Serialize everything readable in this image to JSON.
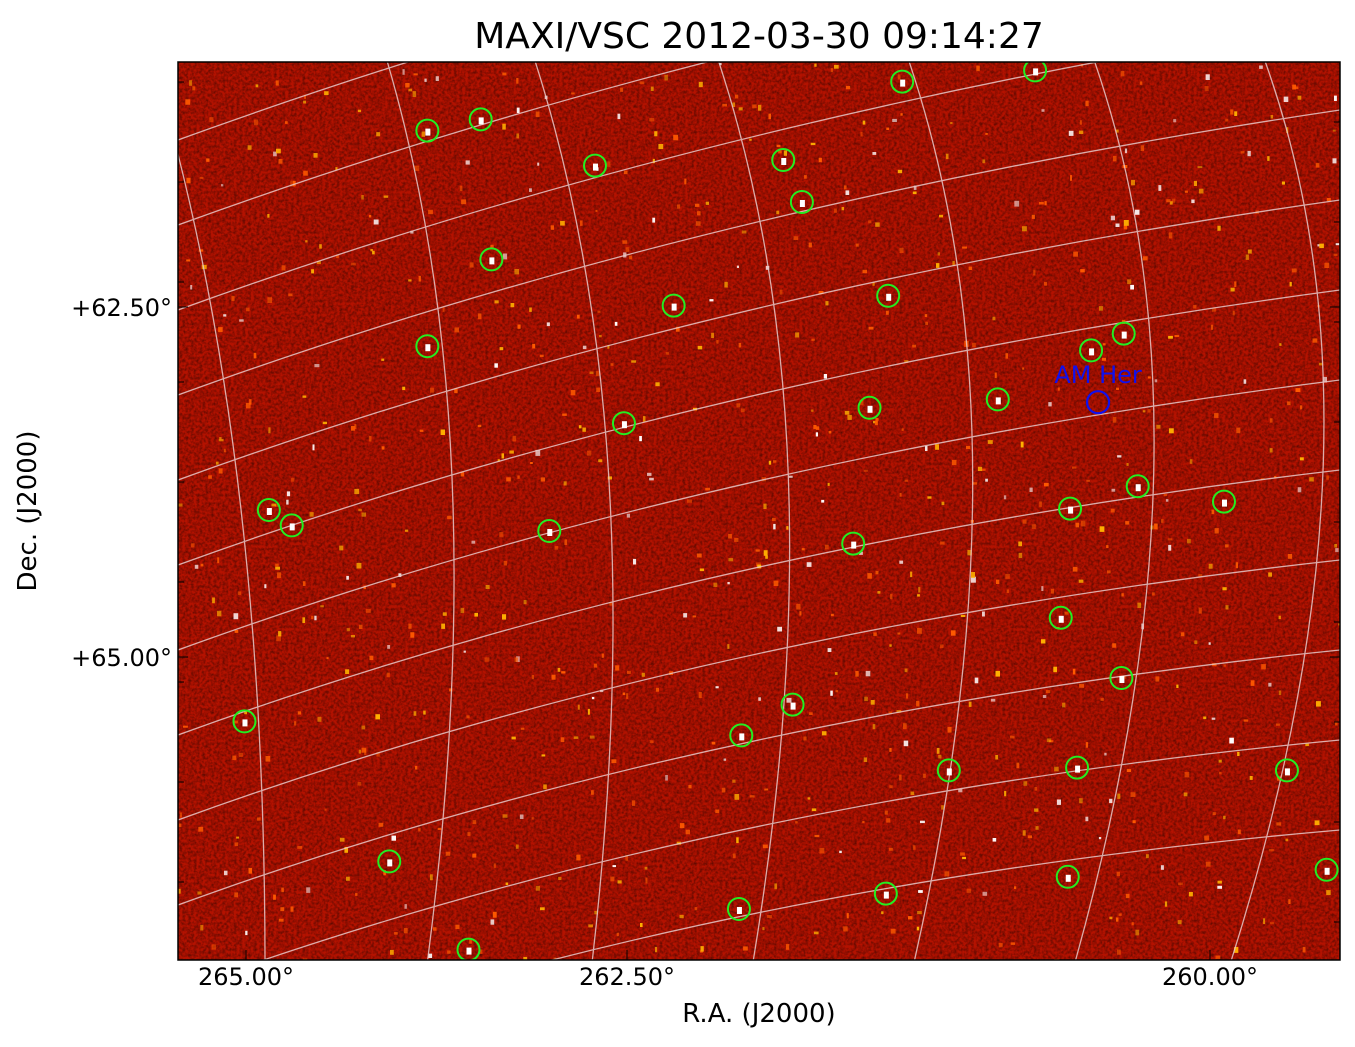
{
  "chart_data": {
    "type": "scatter",
    "title": "MAXI/VSC 2012-03-30 09:14:27",
    "xlabel": "R.A. (J2000)",
    "ylabel": "Dec. (J2000)",
    "xlim": [
      265.45,
      259.44
    ],
    "ylim": [
      60.75,
      67.16
    ],
    "x_ticks": [
      {
        "value": 265.0,
        "label": "265.00°"
      },
      {
        "value": 262.5,
        "label": "262.50°"
      },
      {
        "value": 260.0,
        "label": "260.00°"
      }
    ],
    "y_ticks": [
      {
        "value": 62.5,
        "label": "+62.50°"
      },
      {
        "value": 65.0,
        "label": "+65.00°"
      }
    ],
    "grid": true,
    "background": "X-ray sky image, red colormap",
    "colors": {
      "sources": "#22ee22",
      "target": "#1010ee",
      "grid": "#e8c8c8",
      "image": "#b01000"
    },
    "sources": [
      {
        "ra": 263.81,
        "dec": 61.24
      },
      {
        "ra": 263.46,
        "dec": 61.16
      },
      {
        "ra": 262.71,
        "dec": 61.49
      },
      {
        "ra": 261.32,
        "dec": 60.89
      },
      {
        "ra": 260.75,
        "dec": 60.81
      },
      {
        "ra": 261.83,
        "dec": 61.45
      },
      {
        "ra": 261.75,
        "dec": 61.75
      },
      {
        "ra": 263.39,
        "dec": 62.16
      },
      {
        "ra": 262.3,
        "dec": 62.49
      },
      {
        "ra": 261.38,
        "dec": 62.42
      },
      {
        "ra": 263.81,
        "dec": 62.78
      },
      {
        "ra": 260.37,
        "dec": 62.69
      },
      {
        "ra": 260.51,
        "dec": 62.81
      },
      {
        "ra": 260.91,
        "dec": 63.16
      },
      {
        "ra": 261.46,
        "dec": 63.22
      },
      {
        "ra": 262.52,
        "dec": 63.33
      },
      {
        "ra": 264.85,
        "dec": 63.95
      },
      {
        "ra": 264.7,
        "dec": 64.06
      },
      {
        "ra": 263.01,
        "dec": 64.1
      },
      {
        "ra": 260.31,
        "dec": 63.78
      },
      {
        "ra": 260.6,
        "dec": 63.94
      },
      {
        "ra": 259.94,
        "dec": 63.89
      },
      {
        "ra": 261.53,
        "dec": 64.19
      },
      {
        "ra": 260.64,
        "dec": 64.72
      },
      {
        "ra": 260.38,
        "dec": 65.15
      },
      {
        "ra": 265.01,
        "dec": 65.46
      },
      {
        "ra": 261.79,
        "dec": 65.34
      },
      {
        "ra": 262.01,
        "dec": 65.56
      },
      {
        "ra": 261.12,
        "dec": 65.81
      },
      {
        "ra": 260.57,
        "dec": 65.79
      },
      {
        "ra": 259.67,
        "dec": 65.81
      },
      {
        "ra": 264.06,
        "dec": 66.46
      },
      {
        "ra": 261.39,
        "dec": 66.69
      },
      {
        "ra": 260.61,
        "dec": 66.57
      },
      {
        "ra": 259.5,
        "dec": 66.52
      },
      {
        "ra": 262.02,
        "dec": 66.8
      },
      {
        "ra": 263.54,
        "dec": 67.09
      }
    ],
    "target": {
      "name": "AM Her",
      "ra": 260.48,
      "dec": 63.18
    }
  }
}
